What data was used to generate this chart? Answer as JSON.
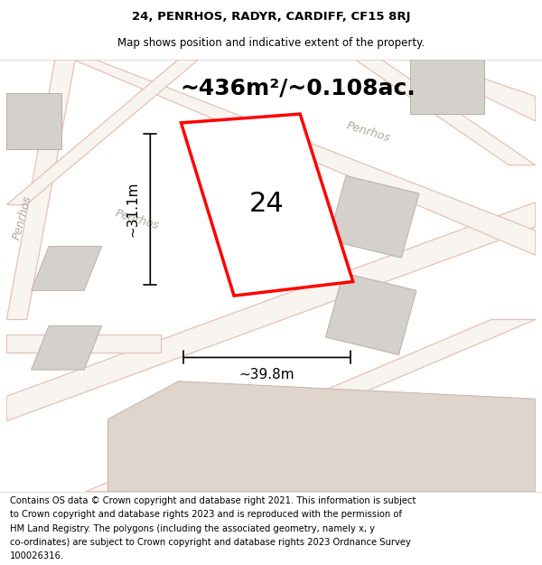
{
  "title_line1": "24, PENRHOS, RADYR, CARDIFF, CF15 8RJ",
  "title_line2": "Map shows position and indicative extent of the property.",
  "area_text": "~436m²/~0.108ac.",
  "label_number": "24",
  "dim_height": "~31.1m",
  "dim_width": "~39.8m",
  "footer_lines": [
    "Contains OS data © Crown copyright and database right 2021. This information is subject",
    "to Crown copyright and database rights 2023 and is reproduced with the permission of",
    "HM Land Registry. The polygons (including the associated geometry, namely x, y",
    "co-ordinates) are subject to Crown copyright and database rights 2023 Ordnance Survey",
    "100026316."
  ],
  "map_bg": "#f5f0eb",
  "road_fill": "#f8f4f0",
  "road_color": "#e8c0b8",
  "block_fill": "#d4d0cc",
  "block_stroke": "#b8b0a8",
  "red_outline": "#ff0000",
  "bottom_fill": "#e0d5cc",
  "bottom_stroke": "#c8b8b0",
  "title_fontsize": 9.5,
  "subtitle_fontsize": 8.5,
  "area_fontsize": 18,
  "label_fontsize": 22,
  "dim_fontsize": 11,
  "footer_fontsize": 7.2,
  "road_label_color": "#b0a8a0",
  "road_label_fontsize": 9
}
